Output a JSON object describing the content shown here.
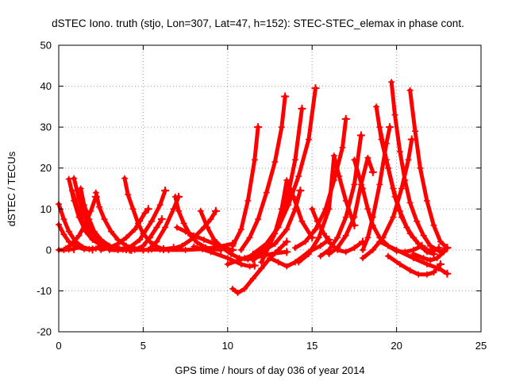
{
  "chart_data": {
    "type": "scatter",
    "title": "dSTEC Iono. truth (stjo, Lon=307, Lat=47, h=152): STEC-STEC_elemax in phase cont.",
    "xlabel": "GPS time / hours of day 036 of year 2014",
    "ylabel": "dSTEC  / TECUs",
    "xlim": [
      0,
      25
    ],
    "ylim": [
      -20,
      50
    ],
    "xticks": [
      0,
      5,
      10,
      15,
      20,
      25
    ],
    "yticks": [
      -20,
      -10,
      0,
      10,
      20,
      30,
      40,
      50
    ],
    "grid": true,
    "marker": "plus",
    "color": "#ff0000",
    "series": [
      {
        "x": [
          0.0,
          0.3,
          0.6,
          1.0,
          1.4,
          1.8,
          2.2,
          2.5
        ],
        "y": [
          11.2,
          7.5,
          4.5,
          2.0,
          0.7,
          0.2,
          0.3,
          1.0
        ]
      },
      {
        "x": [
          0.0,
          0.3,
          0.6,
          1.0,
          1.5,
          2.0
        ],
        "y": [
          6.2,
          3.8,
          2.0,
          0.8,
          0.2,
          0.1
        ]
      },
      {
        "x": [
          0.0,
          0.3,
          0.6,
          0.9
        ],
        "y": [
          0.0,
          0.0,
          0.1,
          0.2
        ]
      },
      {
        "x": [
          0.6,
          0.9,
          1.2,
          1.6,
          2.0,
          2.5,
          3.0,
          3.5
        ],
        "y": [
          17.3,
          12.0,
          8.0,
          4.5,
          2.5,
          1.2,
          0.5,
          0.2
        ]
      },
      {
        "x": [
          0.9,
          1.2,
          1.5,
          1.9,
          2.3,
          2.8,
          3.3
        ],
        "y": [
          17.5,
          12.5,
          8.5,
          5.0,
          2.8,
          1.0,
          0.4
        ]
      },
      {
        "x": [
          0.8,
          1.1,
          1.4,
          1.8,
          2.2,
          2.8,
          3.4,
          4.0
        ],
        "y": [
          14.5,
          10.5,
          7.0,
          4.2,
          2.2,
          0.8,
          0.3,
          0.2
        ]
      },
      {
        "x": [
          1.3,
          1.5,
          1.8,
          2.1,
          2.5,
          3.0,
          3.6,
          4.2
        ],
        "y": [
          15.0,
          11.0,
          7.5,
          4.5,
          2.5,
          1.0,
          0.3,
          0.1
        ]
      },
      {
        "x": [
          0.4,
          0.8,
          1.2,
          1.6,
          1.9,
          2.2
        ],
        "y": [
          0.3,
          1.5,
          3.5,
          6.5,
          9.5,
          13.0
        ]
      },
      {
        "x": [
          2.2,
          2.4,
          2.7,
          3.1,
          3.5,
          4.0,
          4.5,
          5.0
        ],
        "y": [
          14.0,
          10.5,
          7.5,
          4.5,
          2.5,
          1.0,
          0.4,
          0.1
        ]
      },
      {
        "x": [
          1.5,
          1.9,
          2.3,
          2.8,
          3.3,
          3.8,
          4.3
        ],
        "y": [
          6.0,
          4.0,
          2.5,
          1.0,
          0.4,
          0.1,
          0.0
        ]
      },
      {
        "x": [
          3.9,
          4.1,
          4.4,
          4.7,
          5.0,
          5.4,
          5.8,
          6.2
        ],
        "y": [
          17.5,
          13.5,
          10.0,
          6.5,
          4.0,
          2.0,
          0.8,
          0.2
        ]
      },
      {
        "x": [
          2.5,
          3.0,
          3.5,
          4.0,
          4.5,
          4.8,
          5.1,
          5.3
        ],
        "y": [
          0.0,
          0.5,
          1.5,
          3.0,
          5.0,
          7.0,
          9.0,
          10.0
        ]
      },
      {
        "x": [
          3.0,
          4.0,
          5.0,
          6.0,
          6.8
        ],
        "y": [
          0.0,
          0.0,
          0.0,
          0.1,
          0.5
        ]
      },
      {
        "x": [
          4.0,
          4.8,
          5.5,
          6.0,
          6.3
        ],
        "y": [
          0.0,
          2.5,
          7.0,
          11.0,
          14.5
        ]
      },
      {
        "x": [
          4.5,
          5.0,
          5.4,
          5.8,
          6.1
        ],
        "y": [
          0.0,
          1.0,
          3.0,
          5.5,
          7.5
        ]
      },
      {
        "x": [
          5.3,
          5.8,
          6.3,
          6.8,
          7.1
        ],
        "y": [
          0.0,
          2.0,
          5.5,
          10.0,
          13.0
        ]
      },
      {
        "x": [
          6.9,
          7.1,
          7.4,
          7.8,
          8.2,
          8.7,
          9.2,
          9.6
        ],
        "y": [
          13.0,
          9.5,
          6.5,
          3.5,
          1.8,
          0.6,
          0.2,
          0.0
        ]
      },
      {
        "x": [
          5.5,
          6.5,
          7.5,
          8.5,
          9.5,
          10.3
        ],
        "y": [
          0.1,
          0.0,
          0.0,
          0.2,
          0.8,
          1.5
        ]
      },
      {
        "x": [
          6.5,
          7.3,
          8.0,
          8.6,
          9.0,
          9.3
        ],
        "y": [
          0.0,
          1.0,
          3.0,
          5.5,
          7.5,
          9.5
        ]
      },
      {
        "x": [
          7.0,
          7.5,
          8.0,
          8.6,
          9.2,
          9.8,
          10.3
        ],
        "y": [
          5.5,
          4.5,
          3.5,
          2.5,
          1.5,
          0.5,
          0.0
        ]
      },
      {
        "x": [
          8.4,
          8.8,
          9.2,
          9.7,
          10.2,
          10.7,
          11.2,
          12.0,
          12.8,
          13.5
        ],
        "y": [
          9.5,
          5.5,
          2.5,
          0.5,
          -1.0,
          -2.0,
          -2.3,
          -1.5,
          -0.8,
          -0.5
        ]
      },
      {
        "x": [
          8.0,
          9.0,
          10.0,
          10.8,
          11.3,
          11.6
        ],
        "y": [
          0.8,
          -0.5,
          -2.0,
          -3.5,
          -4.0,
          -3.8
        ]
      },
      {
        "x": [
          10.3,
          10.6,
          11.0,
          11.5,
          12.0,
          12.5,
          13.0,
          13.5
        ],
        "y": [
          -9.5,
          -10.5,
          -9.5,
          -7.0,
          -4.5,
          -2.0,
          0.0,
          2.0
        ]
      },
      {
        "x": [
          10.3,
          10.8,
          11.2,
          11.6,
          11.8
        ],
        "y": [
          1.0,
          5.0,
          12.0,
          22.0,
          30.0
        ]
      },
      {
        "x": [
          10.8,
          11.3,
          11.8,
          12.3,
          12.8,
          13.2,
          13.4
        ],
        "y": [
          0.0,
          3.0,
          7.5,
          14.0,
          21.5,
          30.0,
          37.5
        ]
      },
      {
        "x": [
          11.5,
          12.0,
          12.5,
          13.0,
          13.5,
          14.0,
          14.4
        ],
        "y": [
          -2.5,
          -1.0,
          2.0,
          6.0,
          12.0,
          22.0,
          34.5
        ]
      },
      {
        "x": [
          10.0,
          11.0,
          12.0,
          12.8,
          13.5,
          14.0,
          14.3
        ],
        "y": [
          -3.5,
          -2.0,
          -0.5,
          1.5,
          5.0,
          10.0,
          14.5
        ]
      },
      {
        "x": [
          11.5,
          12.3,
          13.0,
          13.6,
          14.2,
          14.8,
          15.2
        ],
        "y": [
          -1.0,
          1.5,
          5.5,
          11.0,
          18.0,
          27.0,
          39.5
        ]
      },
      {
        "x": [
          12.0,
          12.8,
          13.2,
          13.5,
          13.9,
          14.4,
          15.0
        ],
        "y": [
          -3.0,
          4.0,
          10.0,
          17.0,
          13.0,
          7.0,
          3.0
        ]
      },
      {
        "x": [
          12.5,
          13.0,
          13.5,
          14.0,
          14.8,
          15.5,
          16.0
        ],
        "y": [
          -2.0,
          -3.0,
          -4.0,
          -3.0,
          -0.5,
          1.0,
          2.5
        ]
      },
      {
        "x": [
          15.0,
          15.3,
          15.7,
          16.1,
          16.5,
          17.0,
          17.5,
          18.0
        ],
        "y": [
          10.0,
          7.0,
          4.0,
          1.5,
          0.0,
          -0.5,
          0.5,
          2.0
        ]
      },
      {
        "x": [
          14.0,
          14.6,
          15.2,
          15.8,
          16.3,
          16.8,
          17.0
        ],
        "y": [
          0.5,
          2.0,
          5.0,
          10.0,
          17.0,
          25.0,
          32.0
        ]
      },
      {
        "x": [
          14.2,
          14.8,
          15.4,
          16.0,
          16.3,
          16.6,
          17.0,
          17.5
        ],
        "y": [
          -3.0,
          -1.0,
          3.0,
          10.0,
          23.0,
          18.0,
          12.0,
          6.0
        ]
      },
      {
        "x": [
          15.5,
          16.0,
          16.5,
          17.0,
          17.5,
          17.9
        ],
        "y": [
          -1.5,
          0.0,
          3.0,
          8.0,
          16.0,
          28.0
        ]
      },
      {
        "x": [
          16.0,
          16.5,
          17.0,
          17.5,
          17.9,
          18.3,
          18.6
        ],
        "y": [
          -1.0,
          0.5,
          3.5,
          8.0,
          16.0,
          22.5,
          19.0
        ]
      },
      {
        "x": [
          17.5,
          18.0,
          18.3,
          18.6,
          19.0,
          19.5,
          20.0,
          20.5,
          21.0,
          21.5
        ],
        "y": [
          22.0,
          15.0,
          10.0,
          6.0,
          3.0,
          1.0,
          -0.3,
          -0.5,
          0.0,
          1.0
        ]
      },
      {
        "x": [
          18.0,
          18.3,
          18.6,
          19.0,
          19.4,
          19.6
        ],
        "y": [
          0.0,
          3.0,
          8.0,
          16.0,
          26.0,
          30.0
        ]
      },
      {
        "x": [
          18.8,
          19.1,
          19.5,
          19.9,
          20.3,
          20.8,
          21.3,
          21.8,
          22.2,
          22.5
        ],
        "y": [
          35.0,
          27.0,
          20.0,
          13.0,
          8.0,
          4.0,
          1.5,
          0.0,
          -0.3,
          0.5
        ]
      },
      {
        "x": [
          19.0,
          19.4,
          19.8,
          20.2,
          20.6,
          21.0,
          21.4,
          21.8,
          22.2
        ],
        "y": [
          30.0,
          22.0,
          15.0,
          9.5,
          5.5,
          3.0,
          1.0,
          -0.5,
          -1.0
        ]
      },
      {
        "x": [
          19.7,
          19.9,
          20.2,
          20.5,
          20.8,
          21.2,
          21.6,
          22.0,
          22.6,
          23.0
        ],
        "y": [
          41.0,
          33.0,
          24.0,
          17.0,
          11.5,
          7.0,
          3.5,
          1.0,
          -0.5,
          0.5
        ]
      },
      {
        "x": [
          18.0,
          18.6,
          19.2,
          19.8,
          20.3,
          20.7,
          20.9
        ],
        "y": [
          -2.0,
          0.0,
          3.0,
          8.0,
          15.0,
          22.0,
          27.0
        ]
      },
      {
        "x": [
          20.8,
          21.1,
          21.4,
          21.8,
          22.2,
          22.6,
          23.0
        ],
        "y": [
          39.0,
          29.0,
          20.0,
          12.0,
          6.0,
          2.0,
          0.5
        ]
      },
      {
        "x": [
          19.5,
          20.2,
          20.8,
          21.3,
          21.8,
          22.2,
          22.6
        ],
        "y": [
          -1.5,
          -3.5,
          -5.0,
          -6.0,
          -6.0,
          -5.5,
          -3.5
        ]
      },
      {
        "x": [
          19.0,
          20.0,
          21.0,
          21.8,
          22.5,
          23.0
        ],
        "y": [
          2.0,
          0.0,
          -2.0,
          -3.5,
          -4.5,
          -5.8
        ]
      },
      {
        "x": [
          21.0,
          21.6,
          22.0,
          22.4,
          22.8,
          23.0
        ],
        "y": [
          -1.0,
          -2.0,
          -2.5,
          -2.0,
          -0.5,
          0.5
        ]
      }
    ]
  }
}
